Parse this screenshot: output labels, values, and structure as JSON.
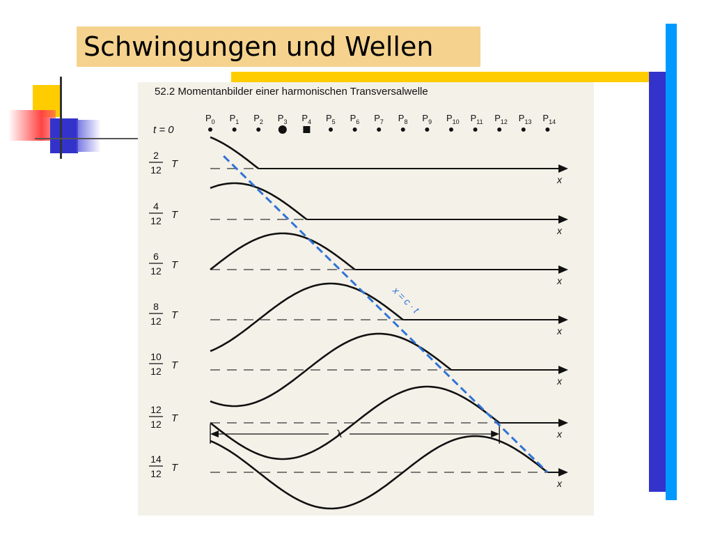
{
  "slide": {
    "title": "Schwingungen und Wellen"
  },
  "figure": {
    "caption": "52.2 Momentanbilder einer harmonischen Transversalwelle",
    "t0_label": "t = 0",
    "period_symbol": "T",
    "x_axis_symbol": "x",
    "wavelength_symbol": "λ",
    "wavefront_label": "x = c · t",
    "points": [
      {
        "label": "P",
        "index": "0",
        "marker": "dot"
      },
      {
        "label": "P",
        "index": "1",
        "marker": "dot"
      },
      {
        "label": "P",
        "index": "2",
        "marker": "dot"
      },
      {
        "label": "P",
        "index": "3",
        "marker": "big-dot"
      },
      {
        "label": "P",
        "index": "4",
        "marker": "square"
      },
      {
        "label": "P",
        "index": "5",
        "marker": "dot"
      },
      {
        "label": "P",
        "index": "6",
        "marker": "dot"
      },
      {
        "label": "P",
        "index": "7",
        "marker": "dot"
      },
      {
        "label": "P",
        "index": "8",
        "marker": "dot"
      },
      {
        "label": "P",
        "index": "9",
        "marker": "dot"
      },
      {
        "label": "P",
        "index": "10",
        "marker": "dot"
      },
      {
        "label": "P",
        "index": "11",
        "marker": "dot"
      },
      {
        "label": "P",
        "index": "12",
        "marker": "dot"
      },
      {
        "label": "P",
        "index": "13",
        "marker": "dot"
      },
      {
        "label": "P",
        "index": "14",
        "marker": "dot"
      }
    ],
    "snapshots": [
      {
        "numerator": "2",
        "denominator": "12"
      },
      {
        "numerator": "4",
        "denominator": "12"
      },
      {
        "numerator": "6",
        "denominator": "12"
      },
      {
        "numerator": "8",
        "denominator": "12"
      },
      {
        "numerator": "10",
        "denominator": "12"
      },
      {
        "numerator": "12",
        "denominator": "12"
      },
      {
        "numerator": "14",
        "denominator": "12"
      }
    ],
    "colors": {
      "wavefront": "#2f73d6",
      "curve": "#111111",
      "panel": "#f4f1e9"
    }
  },
  "decoration": {
    "colors": {
      "yellow": "#ffcc00",
      "blue": "#3333cc",
      "light_blue": "#0099ff",
      "red": "#ff3333"
    }
  }
}
